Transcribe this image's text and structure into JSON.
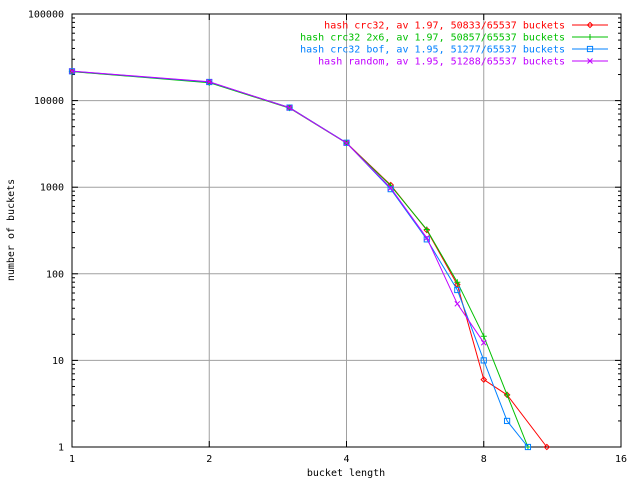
{
  "chart_data": {
    "type": "line",
    "xlabel": "bucket length",
    "ylabel": "number of buckets",
    "xscale": "log2",
    "yscale": "log10",
    "xlim": [
      1,
      16
    ],
    "ylim": [
      1,
      100000
    ],
    "x_ticks": [
      1,
      2,
      4,
      8,
      16
    ],
    "x_tick_labels": [
      "1",
      "2",
      "4",
      "8",
      "16"
    ],
    "y_ticks": [
      1,
      10,
      100,
      1000,
      10000,
      100000
    ],
    "y_tick_labels": [
      "1",
      "10",
      "100",
      "1000",
      "10000",
      "100000"
    ],
    "grid": true,
    "legend_position": "top-right",
    "series": [
      {
        "name": "hash crc32, av 1.97, 50833/65537 buckets",
        "color": "#ff0000",
        "marker": "diamond",
        "x": [
          1,
          2,
          3,
          4,
          5,
          6,
          7,
          8,
          9,
          11
        ],
        "y": [
          21700,
          16300,
          8300,
          3250,
          1060,
          320,
          75,
          6,
          4,
          1
        ]
      },
      {
        "name": "hash crc32 2x6, av 1.97, 50857/65537 buckets",
        "color": "#00c000",
        "marker": "plus",
        "x": [
          1,
          2,
          3,
          4,
          5,
          6,
          7,
          8,
          9,
          10
        ],
        "y": [
          21600,
          16100,
          8200,
          3230,
          1040,
          325,
          80,
          19,
          4,
          1
        ]
      },
      {
        "name": "hash crc32 bof, av 1.95, 51277/65537 buckets",
        "color": "#0080ff",
        "marker": "square",
        "x": [
          1,
          2,
          3,
          4,
          5,
          6,
          7,
          8,
          9,
          10
        ],
        "y": [
          21800,
          16400,
          8300,
          3260,
          950,
          250,
          65,
          10,
          2,
          1
        ]
      },
      {
        "name": "hash random, av 1.95, 51288/65537 buckets",
        "color": "#c000ff",
        "marker": "cross",
        "x": [
          1,
          2,
          3,
          4,
          5,
          6,
          7,
          8
        ],
        "y": [
          21900,
          16500,
          8250,
          3240,
          980,
          260,
          45,
          16
        ]
      }
    ]
  }
}
